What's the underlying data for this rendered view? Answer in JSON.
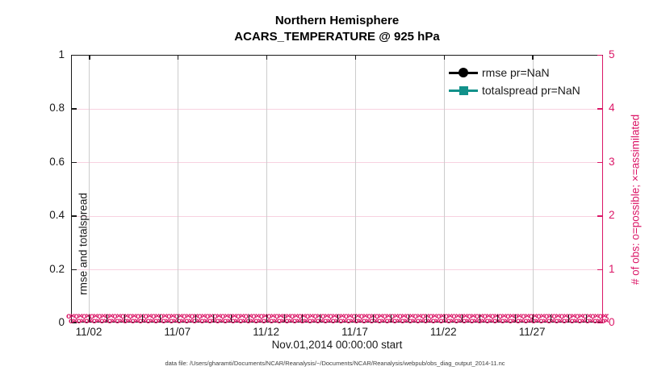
{
  "title": {
    "line1": "Northern Hemisphere",
    "line2": "ACARS_TEMPERATURE @ 925 hPa"
  },
  "footer": {
    "text": "data file: /Users/gharamti/Documents/NCAR/Reanalysis/~/Documents/NCAR/Reanalysis/webpub/obs_diag_output_2014-11.nc"
  },
  "legend": {
    "items": [
      {
        "label": "rmse pr=NaN",
        "color": "#000000",
        "marker": "circle"
      },
      {
        "label": "totalspread pr=NaN",
        "color": "#12918A",
        "marker": "square"
      }
    ]
  },
  "chart_data": {
    "type": "line",
    "title": "Northern Hemisphere",
    "subtitle": "ACARS_TEMPERATURE @ 925 hPa",
    "xlabel": "Nov.01,2014 00:00:00 start",
    "ylabel_left": "rmse and totalspread",
    "ylabel_right": "# of obs: o=possible; ×=assimilated",
    "x_range": {
      "start": "Nov.01,2014 00:00:00",
      "span_days": 30
    },
    "x_tick_labels": [
      "11/02",
      "11/07",
      "11/12",
      "11/17",
      "11/22",
      "11/27"
    ],
    "x_tick_days": [
      1,
      6,
      11,
      16,
      21,
      26
    ],
    "x_minor_tick_every_days": 1,
    "y_left": {
      "label": "rmse and totalspread",
      "ticks": [
        0,
        0.2,
        0.4,
        0.6,
        0.8,
        1
      ],
      "lim": [
        0,
        1
      ]
    },
    "y_right": {
      "label": "# of obs: o=possible; ×=assimilated",
      "ticks": [
        0,
        1,
        2,
        3,
        4,
        5
      ],
      "lim": [
        0,
        5
      ]
    },
    "grid": {
      "horizontal": true,
      "vertical": true
    },
    "legend_position": "top-right",
    "series": [
      {
        "name": "rmse pr=NaN",
        "color": "#000000",
        "marker": "circle",
        "values": null,
        "note": "pr=NaN, no curve drawn"
      },
      {
        "name": "totalspread pr=NaN",
        "color": "#12918A",
        "marker": "square",
        "values": null,
        "note": "pr=NaN, no curve drawn"
      }
    ],
    "obs_markers": {
      "possible_symbol": "o",
      "assimilated_symbol": "×",
      "value_at_all_times": 0,
      "color": "#DB1566",
      "note": "dense o and × markers plotted at right-axis value 0 for every time step across the month",
      "band_pattern": "o×",
      "band_repeat": 120
    },
    "colors": {
      "right_axis": "#DB1566",
      "hgrid": "#F8D2E0",
      "vgrid": "#CCCCCC",
      "axis_black": "#1a1a1a"
    }
  }
}
